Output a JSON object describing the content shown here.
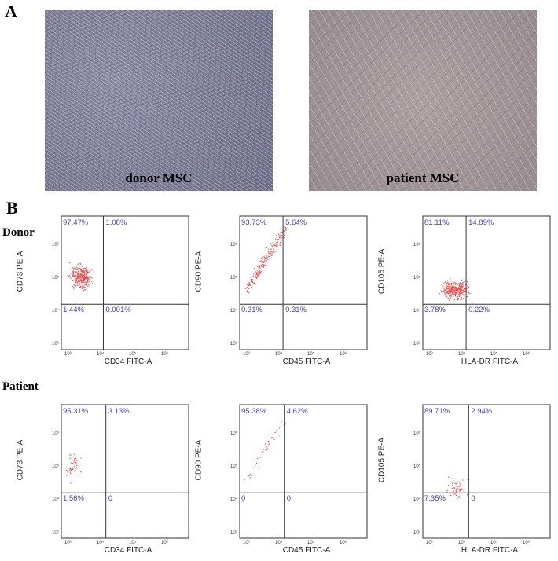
{
  "panel_a": {
    "label": "A",
    "images": [
      {
        "caption": "donor MSC"
      },
      {
        "caption": "patient MSC"
      }
    ]
  },
  "panel_b": {
    "label": "B",
    "x_ticks": [
      "10³",
      "10⁴",
      "10⁵",
      "10⁶"
    ],
    "y_ticks": [
      "10³",
      "10⁴",
      "10⁵",
      "10⁶"
    ],
    "rows": [
      {
        "label": "Donor",
        "plots": [
          {
            "xlabel": "CD34 FITC-A",
            "ylabel": "CD73 PE-A",
            "quadrants": {
              "ul": "97.47%",
              "ur": "1.08%",
              "ll": "1.44%",
              "lr": "0.001%"
            }
          },
          {
            "xlabel": "CD45 FITC-A",
            "ylabel": "CD90 PE-A",
            "quadrants": {
              "ul": "93.73%",
              "ur": "5.64%",
              "ll": "0.31%",
              "lr": "0.31%"
            }
          },
          {
            "xlabel": "HLA-DR FITC-A",
            "ylabel": "CD105 PE-A",
            "quadrants": {
              "ul": "81.11%",
              "ur": "14.89%",
              "ll": "3.78%",
              "lr": "0.22%"
            }
          }
        ]
      },
      {
        "label": "Patient",
        "plots": [
          {
            "xlabel": "CD34 FITC-A",
            "ylabel": "CD73 PE-A",
            "quadrants": {
              "ul": "95.31%",
              "ur": "3.13%",
              "ll": "1.56%",
              "lr": "0"
            }
          },
          {
            "xlabel": "CD45 FITC-A",
            "ylabel": "CD90 PE-A",
            "quadrants": {
              "ul": "95.38%",
              "ur": "4.62%",
              "ll": "0",
              "lr": "0"
            }
          },
          {
            "xlabel": "HLA-DR FITC-A",
            "ylabel": "CD105 PE-A",
            "quadrants": {
              "ul": "89.71%",
              "ur": "2.94%",
              "ll": "7.35%",
              "lr": "0"
            }
          }
        ]
      }
    ],
    "colors": {
      "dots": "#e0504f",
      "quadrant_text": "#4a3fc6"
    }
  }
}
